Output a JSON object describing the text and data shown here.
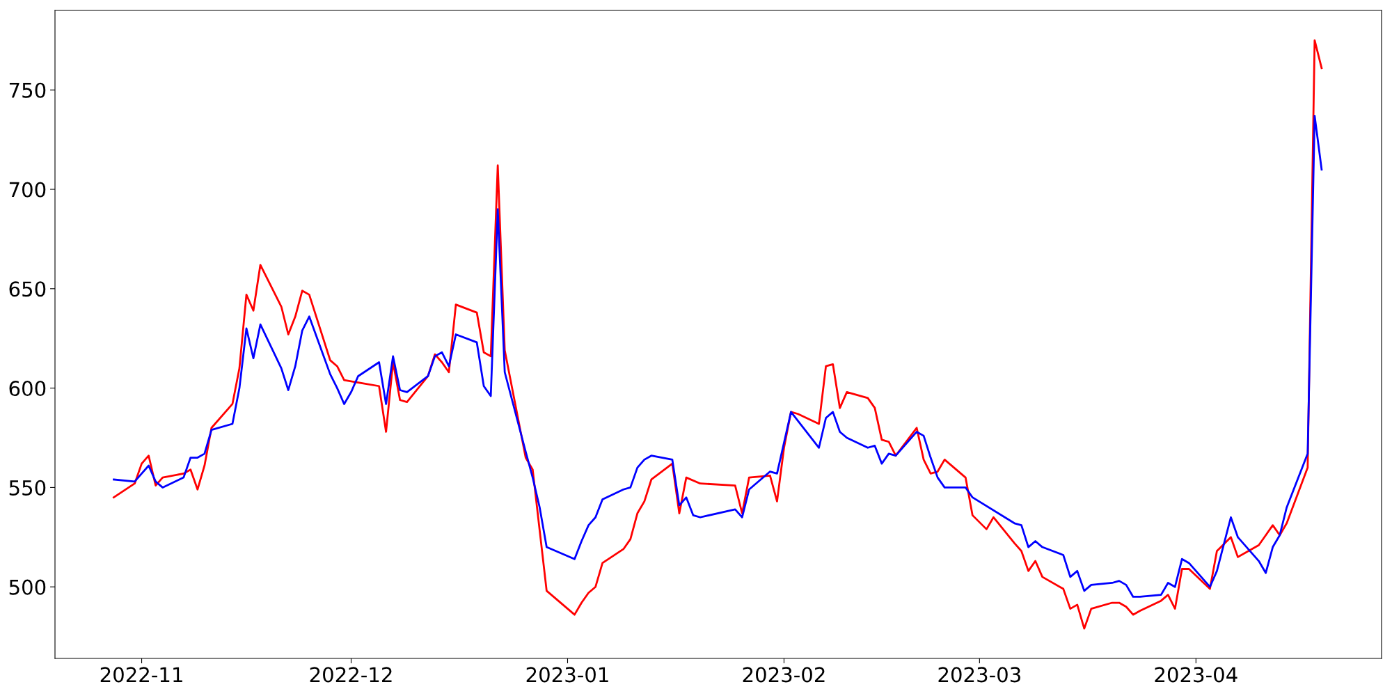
{
  "chart_data": {
    "type": "line",
    "xlim": [
      "2022-10-19T14:00",
      "2023-04-27T14:00"
    ],
    "ylim": [
      464,
      790
    ],
    "xticks": [
      {
        "value": "2022-11-01",
        "label": "2022-11"
      },
      {
        "value": "2022-12-01",
        "label": "2022-12"
      },
      {
        "value": "2023-01-01",
        "label": "2023-01"
      },
      {
        "value": "2023-02-01",
        "label": "2023-02"
      },
      {
        "value": "2023-03-01",
        "label": "2023-03"
      },
      {
        "value": "2023-04-01",
        "label": "2023-04"
      }
    ],
    "yticks": [
      500,
      550,
      600,
      650,
      700,
      750
    ],
    "grid": false,
    "marker": "none",
    "line_style": "solid",
    "series": [
      {
        "color": "#ff0000",
        "x": [
          "2022-10-28",
          "2022-10-31",
          "2022-11-01",
          "2022-11-02",
          "2022-11-03",
          "2022-11-04",
          "2022-11-07",
          "2022-11-08",
          "2022-11-09",
          "2022-11-10",
          "2022-11-11",
          "2022-11-14",
          "2022-11-15",
          "2022-11-16",
          "2022-11-17",
          "2022-11-18",
          "2022-11-21",
          "2022-11-22",
          "2022-11-23",
          "2022-11-24",
          "2022-11-25",
          "2022-11-28",
          "2022-11-29",
          "2022-11-30",
          "2022-12-05",
          "2022-12-06",
          "2022-12-07",
          "2022-12-08",
          "2022-12-09",
          "2022-12-12",
          "2022-12-13",
          "2022-12-14",
          "2022-12-15",
          "2022-12-16",
          "2022-12-19",
          "2022-12-20",
          "2022-12-21",
          "2022-12-22",
          "2022-12-23",
          "2022-12-26",
          "2022-12-27",
          "2022-12-29",
          "2023-01-02",
          "2023-01-03",
          "2023-01-04",
          "2023-01-05",
          "2023-01-06",
          "2023-01-09",
          "2023-01-10",
          "2023-01-11",
          "2023-01-12",
          "2023-01-13",
          "2023-01-16",
          "2023-01-17",
          "2023-01-18",
          "2023-01-20",
          "2023-01-25",
          "2023-01-26",
          "2023-01-27",
          "2023-01-30",
          "2023-01-31",
          "2023-02-01",
          "2023-02-02",
          "2023-02-03",
          "2023-02-06",
          "2023-02-07",
          "2023-02-08",
          "2023-02-09",
          "2023-02-10",
          "2023-02-13",
          "2023-02-14",
          "2023-02-15",
          "2023-02-16",
          "2023-02-17",
          "2023-02-20",
          "2023-02-21",
          "2023-02-22",
          "2023-02-23",
          "2023-02-24",
          "2023-02-27",
          "2023-02-28",
          "2023-03-02",
          "2023-03-03",
          "2023-03-06",
          "2023-03-07",
          "2023-03-08",
          "2023-03-09",
          "2023-03-10",
          "2023-03-13",
          "2023-03-14",
          "2023-03-15",
          "2023-03-16",
          "2023-03-17",
          "2023-03-20",
          "2023-03-21",
          "2023-03-22",
          "2023-03-23",
          "2023-03-24",
          "2023-03-27",
          "2023-03-28",
          "2023-03-29",
          "2023-03-30",
          "2023-03-31",
          "2023-04-03",
          "2023-04-04",
          "2023-04-06",
          "2023-04-07",
          "2023-04-10",
          "2023-04-11",
          "2023-04-12",
          "2023-04-13",
          "2023-04-14",
          "2023-04-17",
          "2023-04-18",
          "2023-04-19"
        ],
        "values": [
          545,
          552,
          562,
          566,
          551,
          555,
          557,
          559,
          549,
          561,
          580,
          592,
          610,
          647,
          639,
          662,
          641,
          627,
          636,
          649,
          647,
          614,
          611,
          604,
          601,
          578,
          613,
          594,
          593,
          606,
          617,
          613,
          608,
          642,
          638,
          618,
          616,
          712,
          619,
          565,
          559,
          498,
          486,
          492,
          497,
          500,
          512,
          519,
          524,
          537,
          543,
          554,
          562,
          537,
          555,
          552,
          551,
          537,
          555,
          556,
          543,
          570,
          588,
          587,
          582,
          611,
          612,
          590,
          598,
          595,
          590,
          574,
          573,
          566,
          580,
          564,
          557,
          558,
          564,
          555,
          536,
          529,
          535,
          522,
          518,
          508,
          513,
          505,
          499,
          489,
          491,
          479,
          489,
          492,
          492,
          490,
          486,
          488,
          493,
          496,
          489,
          509,
          509,
          499,
          518,
          525,
          515,
          521,
          526,
          531,
          526,
          532,
          560,
          775,
          761
        ]
      },
      {
        "color": "#0000ff",
        "x": [
          "2022-10-28",
          "2022-10-31",
          "2022-11-01",
          "2022-11-02",
          "2022-11-03",
          "2022-11-04",
          "2022-11-07",
          "2022-11-08",
          "2022-11-09",
          "2022-11-10",
          "2022-11-11",
          "2022-11-14",
          "2022-11-15",
          "2022-11-16",
          "2022-11-17",
          "2022-11-18",
          "2022-11-21",
          "2022-11-22",
          "2022-11-23",
          "2022-11-24",
          "2022-11-25",
          "2022-11-28",
          "2022-11-29",
          "2022-11-30",
          "2022-12-01",
          "2022-12-02",
          "2022-12-05",
          "2022-12-06",
          "2022-12-07",
          "2022-12-08",
          "2022-12-09",
          "2022-12-12",
          "2022-12-13",
          "2022-12-14",
          "2022-12-15",
          "2022-12-16",
          "2022-12-19",
          "2022-12-20",
          "2022-12-21",
          "2022-12-22",
          "2022-12-23",
          "2022-12-26",
          "2022-12-27",
          "2022-12-28",
          "2022-12-29",
          "2023-01-02",
          "2023-01-03",
          "2023-01-04",
          "2023-01-05",
          "2023-01-06",
          "2023-01-09",
          "2023-01-10",
          "2023-01-11",
          "2023-01-12",
          "2023-01-13",
          "2023-01-16",
          "2023-01-17",
          "2023-01-18",
          "2023-01-19",
          "2023-01-20",
          "2023-01-25",
          "2023-01-26",
          "2023-01-27",
          "2023-01-30",
          "2023-01-31",
          "2023-02-02",
          "2023-02-06",
          "2023-02-07",
          "2023-02-08",
          "2023-02-09",
          "2023-02-10",
          "2023-02-13",
          "2023-02-14",
          "2023-02-15",
          "2023-02-16",
          "2023-02-17",
          "2023-02-20",
          "2023-02-21",
          "2023-02-22",
          "2023-02-23",
          "2023-02-24",
          "2023-02-27",
          "2023-02-28",
          "2023-03-06",
          "2023-03-07",
          "2023-03-08",
          "2023-03-09",
          "2023-03-10",
          "2023-03-13",
          "2023-03-14",
          "2023-03-15",
          "2023-03-16",
          "2023-03-17",
          "2023-03-20",
          "2023-03-21",
          "2023-03-22",
          "2023-03-23",
          "2023-03-24",
          "2023-03-27",
          "2023-03-28",
          "2023-03-29",
          "2023-03-30",
          "2023-03-31",
          "2023-04-03",
          "2023-04-04",
          "2023-04-06",
          "2023-04-07",
          "2023-04-10",
          "2023-04-11",
          "2023-04-12",
          "2023-04-13",
          "2023-04-14",
          "2023-04-17",
          "2023-04-18",
          "2023-04-19"
        ],
        "values": [
          554,
          553,
          557,
          561,
          553,
          550,
          555,
          565,
          565,
          567,
          579,
          582,
          600,
          630,
          615,
          632,
          610,
          599,
          611,
          629,
          636,
          607,
          600,
          592,
          598,
          606,
          613,
          592,
          616,
          599,
          598,
          606,
          616,
          618,
          611,
          627,
          623,
          601,
          596,
          690,
          608,
          568,
          555,
          540,
          520,
          514,
          523,
          531,
          535,
          544,
          549,
          550,
          560,
          564,
          566,
          564,
          541,
          545,
          536,
          535,
          539,
          535,
          549,
          558,
          557,
          588,
          570,
          585,
          588,
          578,
          575,
          570,
          571,
          562,
          567,
          566,
          578,
          576,
          565,
          555,
          550,
          550,
          545,
          532,
          531,
          520,
          523,
          520,
          516,
          505,
          508,
          498,
          501,
          502,
          503,
          501,
          495,
          495,
          496,
          502,
          500,
          514,
          512,
          500,
          508,
          535,
          525,
          513,
          507,
          520,
          526,
          540,
          567,
          737,
          710
        ]
      }
    ]
  }
}
